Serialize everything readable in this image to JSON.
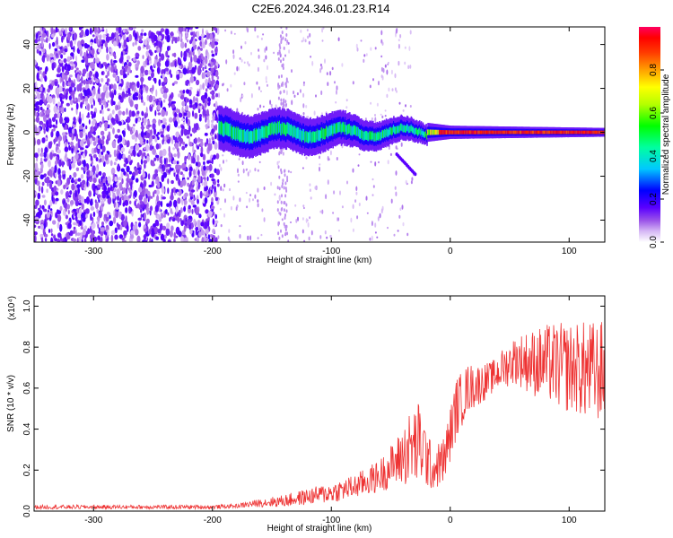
{
  "figure_title": "C2E6.2024.346.01.23.R14",
  "chart_data": [
    {
      "type": "heatmap",
      "xlabel": "Height of straight line (km)",
      "ylabel": "Frequency (Hz)",
      "xlim": [
        -350,
        130
      ],
      "ylim": [
        -50,
        48
      ],
      "xticks": [
        -300,
        -200,
        -100,
        0,
        100
      ],
      "yticks": [
        -40,
        -20,
        0,
        20,
        40
      ],
      "colorbar": {
        "label": "Normalized spectral amplitude",
        "range": [
          0,
          1
        ],
        "ticks": [
          "0.0",
          "0.2",
          "0.4",
          "0.6",
          "0.8"
        ],
        "colors": [
          "#ffffff",
          "#c8a0f0",
          "#8a2be2",
          "#5a00ff",
          "#0000ff",
          "#00c8ff",
          "#00ffa0",
          "#00ff00",
          "#b4ff00",
          "#ffff00",
          "#ffa000",
          "#ff3c00",
          "#ff0000",
          "#ff0060"
        ]
      },
      "description_regions": {
        "noise_region_x": [
          -350,
          -195
        ],
        "signal_onset_x": -195,
        "signal_center_freq": 0,
        "signal_width_hz": [
          [
            -195,
            10
          ],
          [
            -100,
            8
          ],
          [
            -30,
            5
          ],
          [
            0,
            3
          ],
          [
            130,
            2
          ]
        ],
        "peak_amplitude_x": [
          -10,
          130
        ]
      }
    },
    {
      "type": "line",
      "xlabel": "Height of straight line (km)",
      "ylabel": "SNR (10 * v/v)",
      "y_scale_label": "(x10⁴)",
      "xlim": [
        -350,
        130
      ],
      "ylim": [
        0,
        1.05
      ],
      "xticks": [
        -300,
        -200,
        -100,
        0,
        100
      ],
      "yticks": [
        "0.0",
        "0.2",
        "0.4",
        "0.6",
        "0.8",
        "1.0"
      ],
      "series": [
        {
          "color": "#ee3333",
          "x": [
            -350,
            -300,
            -250,
            -200,
            -180,
            -160,
            -140,
            -120,
            -100,
            -80,
            -60,
            -45,
            -35,
            -25,
            -15,
            -5,
            5,
            15,
            25,
            35,
            45,
            55,
            65,
            75,
            85,
            95,
            105,
            115,
            125,
            130
          ],
          "y_mean": [
            0.02,
            0.02,
            0.02,
            0.02,
            0.025,
            0.04,
            0.05,
            0.07,
            0.09,
            0.12,
            0.17,
            0.24,
            0.3,
            0.33,
            0.2,
            0.25,
            0.5,
            0.6,
            0.62,
            0.65,
            0.7,
            0.74,
            0.73,
            0.72,
            0.72,
            0.7,
            0.7,
            0.68,
            0.68,
            0.68
          ],
          "y_spread": [
            0.01,
            0.01,
            0.01,
            0.01,
            0.01,
            0.02,
            0.03,
            0.04,
            0.05,
            0.06,
            0.08,
            0.12,
            0.18,
            0.22,
            0.1,
            0.12,
            0.15,
            0.12,
            0.1,
            0.08,
            0.1,
            0.12,
            0.15,
            0.18,
            0.2,
            0.22,
            0.22,
            0.25,
            0.25,
            0.25
          ]
        }
      ]
    }
  ]
}
